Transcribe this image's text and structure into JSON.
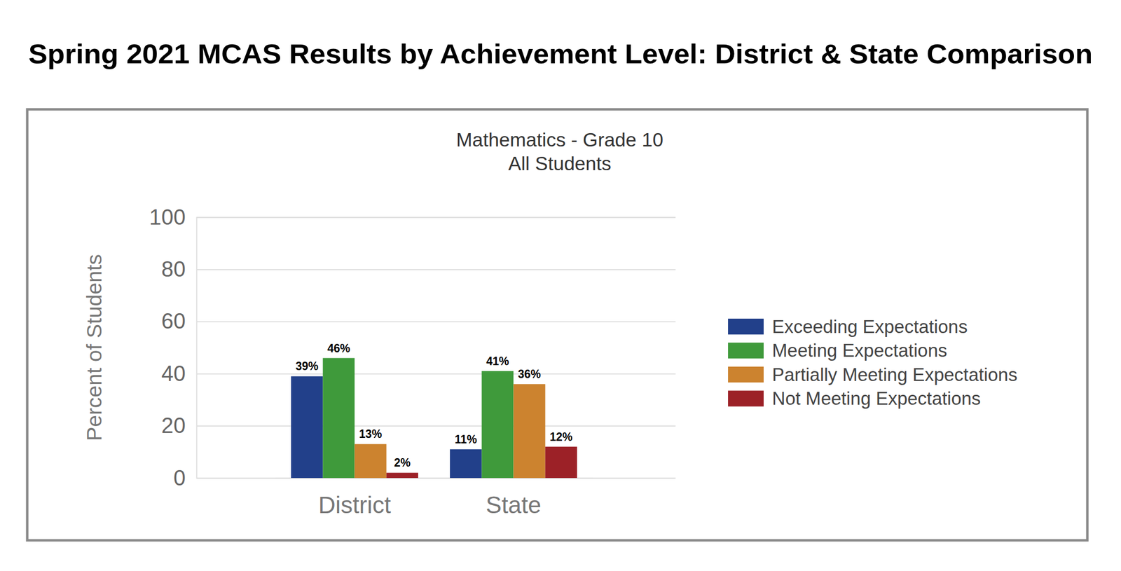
{
  "chart_data": {
    "type": "bar",
    "title": "Spring 2021 MCAS Results by Achievement Level: District & State Comparison",
    "subtitle": [
      "Mathematics - Grade 10",
      "All Students"
    ],
    "y_label": "Percent of Students",
    "categories": [
      "District",
      "State"
    ],
    "series": [
      {
        "name": "Exceeding Expectations",
        "color": "#22408a",
        "values": [
          39,
          11
        ],
        "value_labels": [
          "39%",
          "11%"
        ]
      },
      {
        "name": "Meeting Expectations",
        "color": "#3f9a3b",
        "values": [
          46,
          41
        ],
        "value_labels": [
          "46%",
          "41%"
        ]
      },
      {
        "name": "Partially Meeting Expectations",
        "color": "#cc832f",
        "values": [
          13,
          36
        ],
        "value_labels": [
          "13%",
          "36%"
        ]
      },
      {
        "name": "Not Meeting Expectations",
        "color": "#9c2127",
        "values": [
          2,
          12
        ],
        "value_labels": [
          "2%",
          "12%"
        ]
      }
    ],
    "ylim": [
      0,
      100
    ],
    "yticks": [
      0,
      20,
      40,
      60,
      80,
      100
    ],
    "grid": true,
    "legend": "right",
    "data_labels": true
  }
}
